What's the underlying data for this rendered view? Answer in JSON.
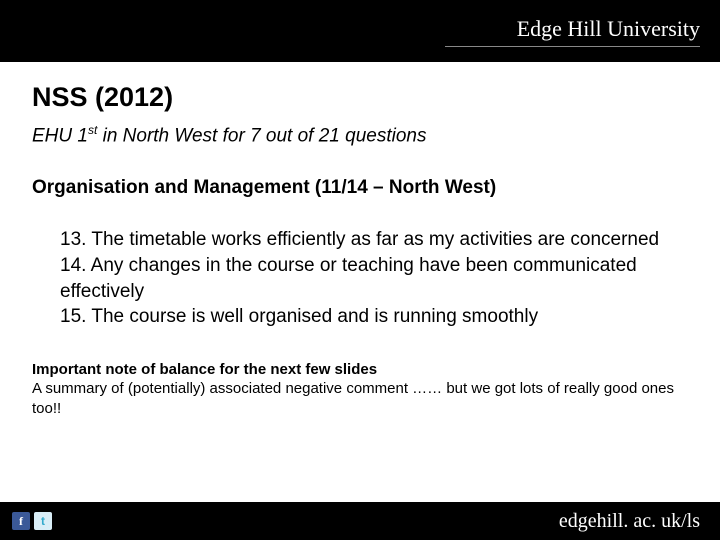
{
  "header": {
    "logo_text": "Edge Hill University"
  },
  "main": {
    "title": "NSS (2012)",
    "subtitle_prefix": "EHU 1",
    "subtitle_super": "st",
    "subtitle_suffix": " in North West for 7 out of 21 questions",
    "section": "Organisation and Management (11/14 – North West)",
    "q13": "13. The timetable works efficiently as far as my activities are concerned",
    "q14": "14. Any changes in the course or teaching have been communicated effectively",
    "q15": "15. The course is well organised and is running smoothly",
    "note_heading": "Important note of balance for the next few slides",
    "note_body": "A summary of (potentially) associated negative comment …… but we got lots of really good ones too!!"
  },
  "footer": {
    "fb_glyph": "f",
    "tw_glyph": "t",
    "url": "edgehill. ac. uk/ls"
  },
  "colors": {
    "header_bg": "#000000",
    "footer_bg": "#000000",
    "body_bg": "#ffffff",
    "text": "#000000",
    "logo_text": "#ffffff"
  }
}
